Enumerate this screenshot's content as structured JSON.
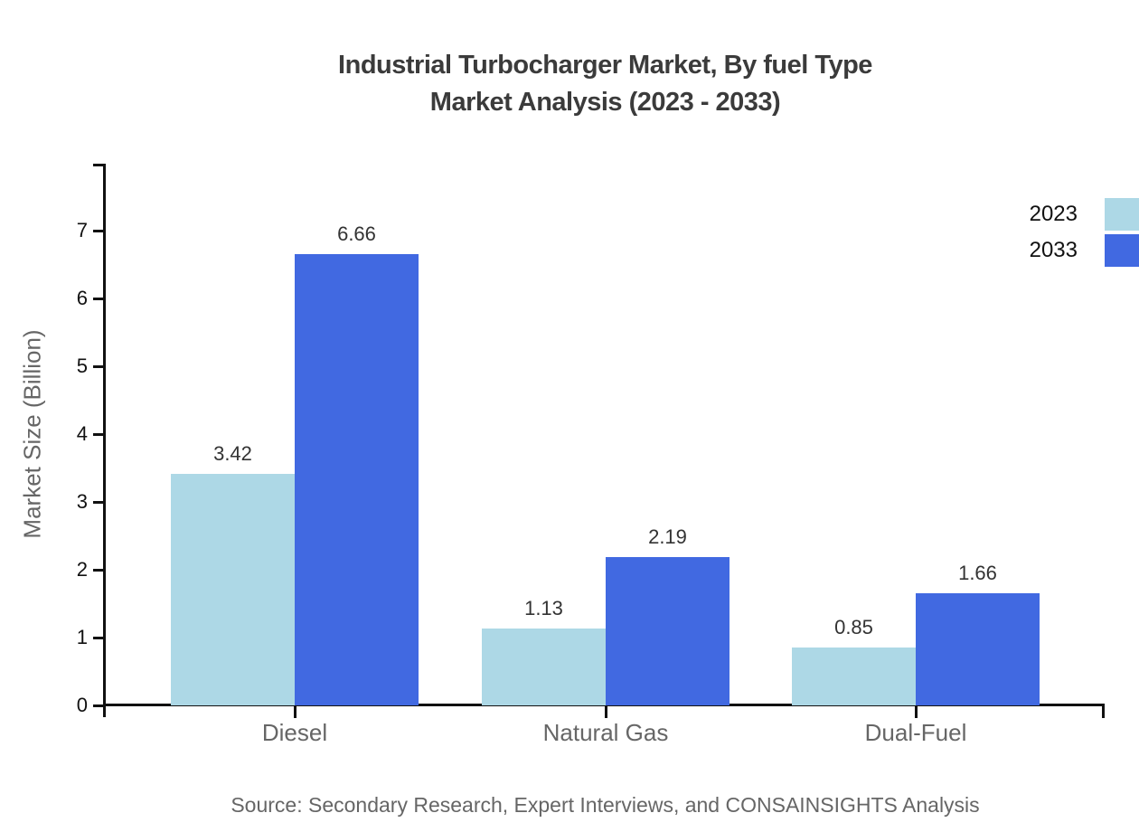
{
  "title": {
    "line1": "Industrial Turbocharger Market, By fuel Type",
    "line2": "Market Analysis (2023 - 2033)"
  },
  "source": "Source: Secondary Research, Expert Interviews, and CONSAINSIGHTS Analysis",
  "chart_data": {
    "type": "bar",
    "title": "Industrial Turbocharger Market, By fuel Type Market Analysis (2023 - 2033)",
    "categories": [
      "Diesel",
      "Natural Gas",
      "Dual-Fuel"
    ],
    "series": [
      {
        "name": "2023",
        "color": "#ADD8E6",
        "values": [
          3.42,
          1.13,
          0.85
        ]
      },
      {
        "name": "2033",
        "color": "#4169E1",
        "values": [
          6.66,
          2.19,
          1.66
        ]
      }
    ],
    "xlabel": "",
    "ylabel": "Market Size (Billion)",
    "ylim": [
      0,
      8
    ],
    "yticks": [
      0,
      1,
      2,
      3,
      4,
      5,
      6,
      7
    ],
    "grid": false,
    "legend_position": "top-right",
    "value_labels": true,
    "axis_color": "#111111",
    "label_color": "#333333",
    "category_label_color": "#666666"
  }
}
